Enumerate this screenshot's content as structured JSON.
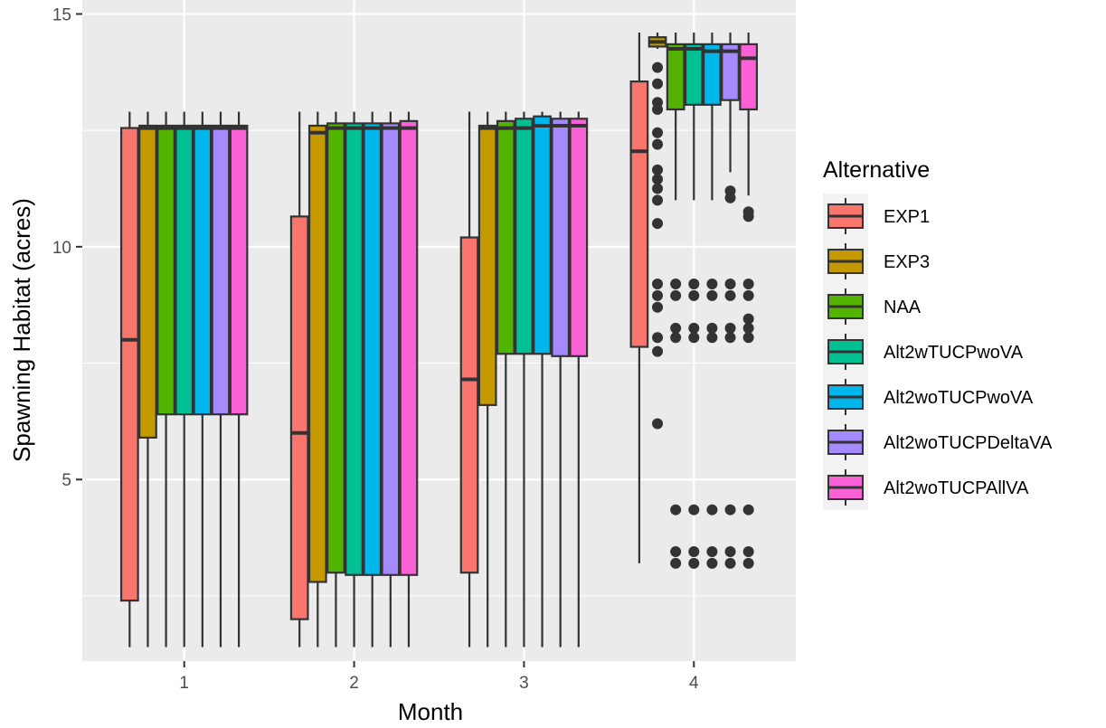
{
  "chart_data": {
    "type": "boxplot",
    "xlabel": "Month",
    "ylabel": "Spawning Habitat (acres)",
    "categories": [
      "1",
      "2",
      "3",
      "4"
    ],
    "y_ticks": [
      "5",
      "10",
      "15"
    ],
    "ylim": [
      1.1,
      15.3
    ],
    "grid": true,
    "legend": {
      "title": "Alternative",
      "position": "right"
    },
    "series": [
      {
        "name": "EXP1",
        "color": "#F8766D",
        "boxes": [
          {
            "min": 1.4,
            "q1": 2.4,
            "median": 8.0,
            "q3": 12.55,
            "max": 12.9,
            "outliers": []
          },
          {
            "min": 1.4,
            "q1": 2.0,
            "median": 6.0,
            "q3": 10.65,
            "max": 12.9,
            "outliers": []
          },
          {
            "min": 1.4,
            "q1": 3.0,
            "median": 7.15,
            "q3": 10.2,
            "max": 12.9,
            "outliers": []
          },
          {
            "min": 3.2,
            "q1": 7.85,
            "median": 12.05,
            "q3": 13.55,
            "max": 14.6,
            "outliers": []
          }
        ]
      },
      {
        "name": "EXP3",
        "color": "#C49A00",
        "boxes": [
          {
            "min": 1.4,
            "q1": 5.9,
            "median": 12.55,
            "q3": 12.6,
            "max": 12.9,
            "outliers": []
          },
          {
            "min": 1.4,
            "q1": 2.8,
            "median": 12.45,
            "q3": 12.6,
            "max": 12.9,
            "outliers": []
          },
          {
            "min": 1.4,
            "q1": 6.6,
            "median": 12.55,
            "q3": 12.6,
            "max": 12.9,
            "outliers": []
          },
          {
            "min": 14.25,
            "q1": 14.3,
            "median": 14.4,
            "q3": 14.5,
            "max": 14.6,
            "outliers": [
              13.85,
              13.5,
              13.1,
              12.95,
              12.45,
              12.2,
              11.65,
              11.45,
              11.25,
              11.0,
              10.5,
              9.2,
              8.95,
              8.7,
              8.05,
              7.75,
              6.2
            ]
          }
        ]
      },
      {
        "name": "NAA",
        "color": "#53B400",
        "boxes": [
          {
            "min": 1.4,
            "q1": 6.4,
            "median": 12.55,
            "q3": 12.6,
            "max": 12.9,
            "outliers": []
          },
          {
            "min": 1.4,
            "q1": 3.0,
            "median": 12.55,
            "q3": 12.65,
            "max": 12.9,
            "outliers": []
          },
          {
            "min": 1.4,
            "q1": 7.7,
            "median": 12.55,
            "q3": 12.7,
            "max": 12.9,
            "outliers": []
          },
          {
            "min": 11.0,
            "q1": 12.95,
            "median": 14.25,
            "q3": 14.35,
            "max": 14.6,
            "outliers": [
              9.2,
              8.95,
              8.25,
              8.05,
              4.35,
              3.45,
              3.2
            ]
          }
        ]
      },
      {
        "name": "Alt2wTUCPwoVA",
        "color": "#00C094",
        "boxes": [
          {
            "min": 1.4,
            "q1": 6.4,
            "median": 12.55,
            "q3": 12.6,
            "max": 12.9,
            "outliers": []
          },
          {
            "min": 1.4,
            "q1": 2.95,
            "median": 12.55,
            "q3": 12.65,
            "max": 12.9,
            "outliers": []
          },
          {
            "min": 1.4,
            "q1": 7.7,
            "median": 12.55,
            "q3": 12.75,
            "max": 12.9,
            "outliers": []
          },
          {
            "min": 11.0,
            "q1": 13.05,
            "median": 14.25,
            "q3": 14.35,
            "max": 14.6,
            "outliers": [
              9.2,
              8.95,
              8.25,
              8.05,
              4.35,
              3.45,
              3.2
            ]
          }
        ]
      },
      {
        "name": "Alt2woTUCPwoVA",
        "color": "#00B6EB",
        "boxes": [
          {
            "min": 1.4,
            "q1": 6.4,
            "median": 12.55,
            "q3": 12.6,
            "max": 12.9,
            "outliers": []
          },
          {
            "min": 1.4,
            "q1": 2.95,
            "median": 12.55,
            "q3": 12.65,
            "max": 12.9,
            "outliers": []
          },
          {
            "min": 1.4,
            "q1": 7.7,
            "median": 12.6,
            "q3": 12.8,
            "max": 12.9,
            "outliers": []
          },
          {
            "min": 11.0,
            "q1": 13.05,
            "median": 14.2,
            "q3": 14.35,
            "max": 14.6,
            "outliers": [
              9.2,
              8.95,
              8.25,
              8.05,
              4.35,
              3.45,
              3.2
            ]
          }
        ]
      },
      {
        "name": "Alt2woTUCPDeltaVA",
        "color": "#A58AFF",
        "boxes": [
          {
            "min": 1.4,
            "q1": 6.4,
            "median": 12.55,
            "q3": 12.6,
            "max": 12.9,
            "outliers": []
          },
          {
            "min": 1.4,
            "q1": 2.95,
            "median": 12.55,
            "q3": 12.65,
            "max": 12.9,
            "outliers": []
          },
          {
            "min": 1.4,
            "q1": 7.65,
            "median": 12.6,
            "q3": 12.75,
            "max": 12.9,
            "outliers": []
          },
          {
            "min": 11.6,
            "q1": 13.15,
            "median": 14.2,
            "q3": 14.35,
            "max": 14.6,
            "outliers": [
              11.2,
              11.05,
              9.2,
              8.95,
              8.25,
              8.05,
              4.35,
              3.45,
              3.2
            ]
          }
        ]
      },
      {
        "name": "Alt2woTUCPAllVA",
        "color": "#FB61D7",
        "boxes": [
          {
            "min": 1.4,
            "q1": 6.4,
            "median": 12.55,
            "q3": 12.6,
            "max": 12.9,
            "outliers": []
          },
          {
            "min": 1.4,
            "q1": 2.95,
            "median": 12.55,
            "q3": 12.7,
            "max": 12.9,
            "outliers": []
          },
          {
            "min": 1.4,
            "q1": 7.65,
            "median": 12.6,
            "q3": 12.75,
            "max": 12.9,
            "outliers": []
          },
          {
            "min": 11.1,
            "q1": 12.95,
            "median": 14.05,
            "q3": 14.35,
            "max": 14.6,
            "outliers": [
              10.75,
              10.65,
              9.2,
              8.95,
              8.45,
              8.25,
              8.05,
              4.35,
              3.45,
              3.2
            ]
          }
        ]
      }
    ]
  }
}
